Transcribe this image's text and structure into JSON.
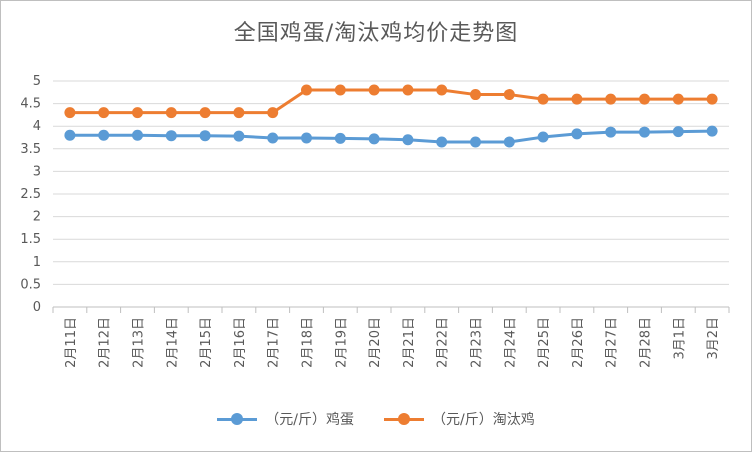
{
  "chart_data": {
    "type": "line",
    "title": "全国鸡蛋/淘汰鸡均价走势图",
    "categories": [
      "2月11日",
      "2月12日",
      "2月13日",
      "2月14日",
      "2月15日",
      "2月16日",
      "2月17日",
      "2月18日",
      "2月19日",
      "2月20日",
      "2月21日",
      "2月22日",
      "2月23日",
      "2月24日",
      "2月25日",
      "2月26日",
      "2月27日",
      "2月28日",
      "3月1日",
      "3月2日"
    ],
    "ylim": [
      0,
      5
    ],
    "yticks": [
      0,
      0.5,
      1,
      1.5,
      2,
      2.5,
      3,
      3.5,
      4,
      4.5,
      5
    ],
    "grid": true,
    "legend_position": "bottom",
    "series": [
      {
        "name": "（元/斤）鸡蛋",
        "color": "#5b9bd5",
        "values": [
          3.8,
          3.8,
          3.8,
          3.79,
          3.79,
          3.78,
          3.74,
          3.74,
          3.73,
          3.72,
          3.7,
          3.65,
          3.65,
          3.65,
          3.76,
          3.83,
          3.87,
          3.87,
          3.88,
          3.89
        ]
      },
      {
        "name": "（元/斤）淘汰鸡",
        "color": "#ed7d31",
        "values": [
          4.3,
          4.3,
          4.3,
          4.3,
          4.3,
          4.3,
          4.3,
          4.8,
          4.8,
          4.8,
          4.8,
          4.8,
          4.7,
          4.7,
          4.6,
          4.6,
          4.6,
          4.6,
          4.6,
          4.6
        ]
      }
    ]
  }
}
